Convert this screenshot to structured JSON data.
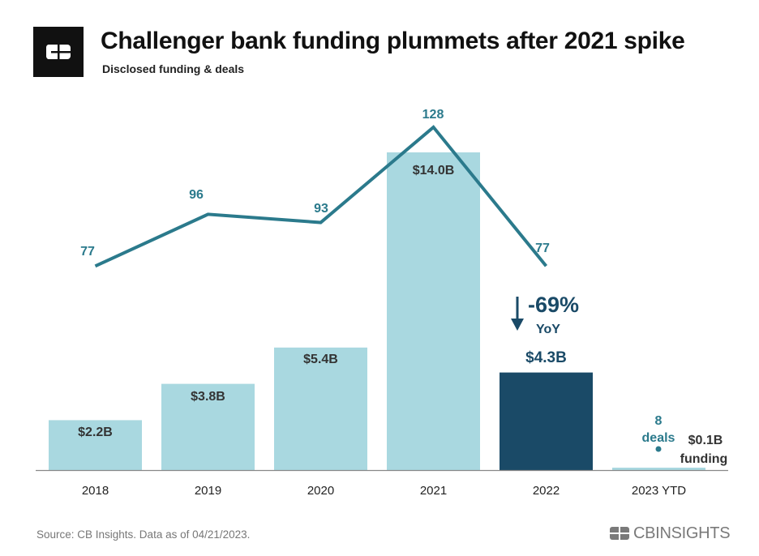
{
  "header": {
    "title": "Challenger bank funding plummets after 2021 spike",
    "subtitle": "Disclosed funding & deals"
  },
  "chart_data": {
    "type": "bar",
    "title": "Challenger bank funding plummets after 2021 spike",
    "subtitle": "Disclosed funding & deals",
    "categories": [
      "2018",
      "2019",
      "2020",
      "2021",
      "2022",
      "2023 YTD"
    ],
    "series": [
      {
        "name": "Disclosed funding ($B)",
        "type": "bar",
        "values": [
          2.2,
          3.8,
          5.4,
          14.0,
          4.3,
          0.1
        ],
        "labels": [
          "$2.2B",
          "$3.8B",
          "$5.4B",
          "$14.0B",
          "$4.3B",
          "$0.1B"
        ]
      },
      {
        "name": "Deals",
        "type": "line",
        "values": [
          77,
          96,
          93,
          128,
          77,
          8
        ],
        "labels": [
          "77",
          "96",
          "93",
          "128",
          "77",
          "8"
        ]
      }
    ],
    "colors": {
      "bar": "#a9d8e0",
      "bar_highlight": "#1a4a67",
      "line": "#2b7a8c",
      "axis": "#888888",
      "label_dark": "#333333"
    },
    "annotations": {
      "yoy_change": "-69%",
      "yoy_label": "YoY",
      "deals_suffix": "deals",
      "funding_suffix": "funding"
    }
  },
  "footer": {
    "source": "Source: CB Insights. Data as of 04/21/2023.",
    "brand": "CBINSIGHTS"
  }
}
